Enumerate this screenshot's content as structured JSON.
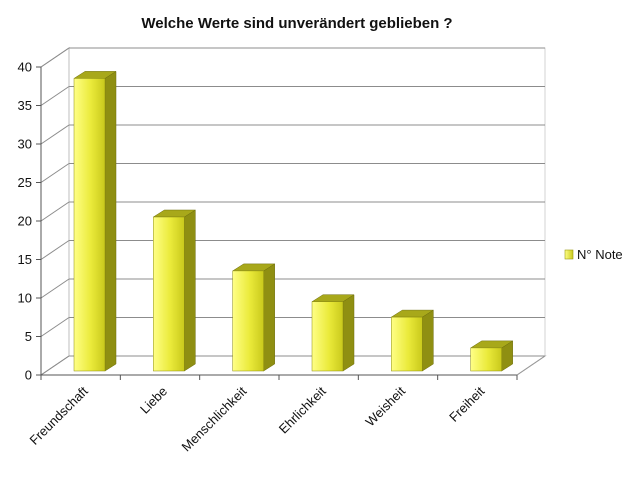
{
  "chart_data": {
    "type": "bar",
    "title": "Welche Werte sind unverändert geblieben ?",
    "categories": [
      "Freundschaft",
      "Liebe",
      "Menschlichkeit",
      "Ehrlichkeit",
      "Weisheit",
      "Freiheit"
    ],
    "series": [
      {
        "name": "N° Note",
        "values": [
          38,
          20,
          13,
          9,
          7,
          3
        ],
        "color": "#d8d820"
      }
    ],
    "ylim": [
      0,
      40
    ],
    "yticks": [
      "0",
      "5",
      "10",
      "15",
      "20",
      "25",
      "30",
      "35",
      "40"
    ],
    "grid": true,
    "legend_position": "right",
    "style": "3d-bar"
  }
}
